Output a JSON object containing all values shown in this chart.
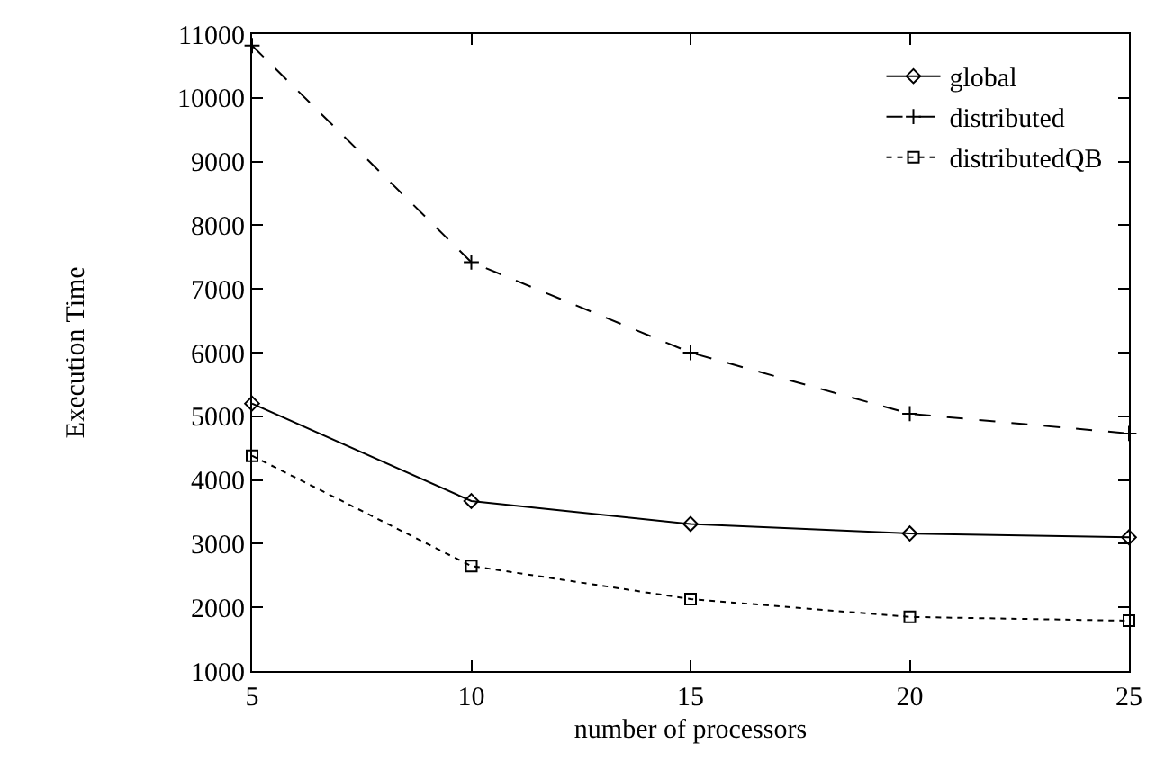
{
  "chart_data": {
    "type": "line",
    "xlabel": "number of processors",
    "ylabel": "Execution Time",
    "x": [
      5,
      10,
      15,
      20,
      25
    ],
    "series": [
      {
        "name": "global",
        "color": "#000000",
        "values": [
          5200,
          3670,
          3310,
          3160,
          3100
        ],
        "marker": "diamond",
        "line_style": "solid"
      },
      {
        "name": "distributed",
        "color": "#000000",
        "values": [
          10820,
          7420,
          6000,
          5040,
          4730
        ],
        "marker": "cross",
        "line_style": "dashed"
      },
      {
        "name": "distributedQB",
        "color": "#000000",
        "values": [
          4380,
          2650,
          2130,
          1850,
          1790
        ],
        "marker": "square",
        "line_style": "dotted"
      }
    ],
    "xlim": [
      5,
      25
    ],
    "xticks": [
      5,
      10,
      15,
      20,
      25
    ],
    "ylim": [
      1000,
      11000
    ],
    "yticks": [
      1000,
      2000,
      3000,
      4000,
      5000,
      6000,
      7000,
      8000,
      9000,
      10000,
      11000
    ],
    "grid": false,
    "legend": "top right"
  }
}
